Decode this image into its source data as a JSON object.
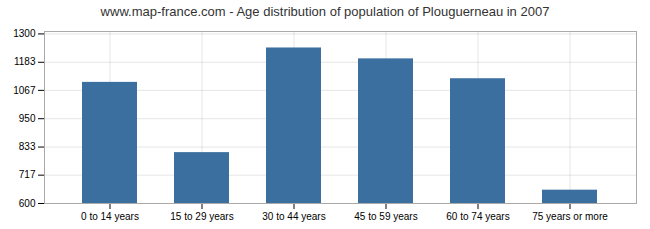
{
  "chart_data": {
    "type": "bar",
    "title": "www.map-france.com - Age distribution of population of Plouguerneau in 2007",
    "categories": [
      "0 to 14 years",
      "15 to 29 years",
      "30 to 44 years",
      "45 to 59 years",
      "60 to 74 years",
      "75 years or more"
    ],
    "values": [
      1100,
      810,
      1242,
      1197,
      1115,
      655
    ],
    "color": "#3a6f9f",
    "ylim": [
      600,
      1310
    ],
    "yticks": [
      600,
      717,
      833,
      950,
      1067,
      1183,
      1300
    ],
    "grid": true
  }
}
